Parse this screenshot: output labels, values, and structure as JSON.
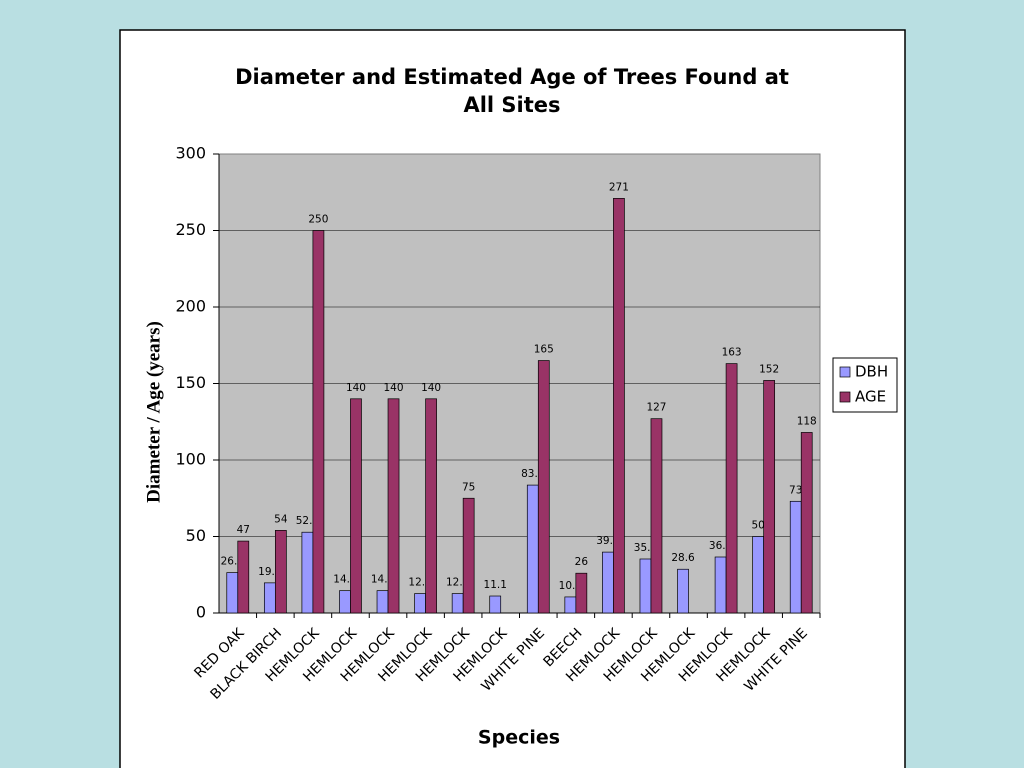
{
  "chart_data": {
    "type": "bar",
    "title": "Diameter and Estimated Age of Trees Found at All Sites",
    "xlabel": "Species",
    "ylabel": "Diameter / Age (years)",
    "categories": [
      "RED OAK",
      "BLACK BIRCH",
      "HEMLOCK",
      "HEMLOCK",
      "HEMLOCK",
      "HEMLOCK",
      "HEMLOCK",
      "HEMLOCK",
      "WHITE PINE",
      "BEECH",
      "HEMLOCK",
      "HEMLOCK",
      "HEMLOCK",
      "HEMLOCK",
      "HEMLOCK",
      "WHITE PINE"
    ],
    "series": [
      {
        "name": "DBH",
        "color": "#9999ff",
        "values": [
          26.4,
          19.7,
          52.8,
          14.6,
          14.6,
          12.7,
          12.7,
          11.1,
          83.6,
          10.5,
          39.8,
          35.3,
          28.6,
          36.6,
          50,
          73
        ]
      },
      {
        "name": "AGE",
        "color": "#993366",
        "values": [
          47,
          54,
          250,
          140,
          140,
          140,
          75,
          null,
          165,
          26,
          271,
          127,
          null,
          163,
          152,
          118
        ]
      }
    ],
    "ylim": [
      0,
      300
    ],
    "yticks": [
      0,
      50,
      100,
      150,
      200,
      250,
      300
    ],
    "grid": true,
    "legend": "right"
  }
}
